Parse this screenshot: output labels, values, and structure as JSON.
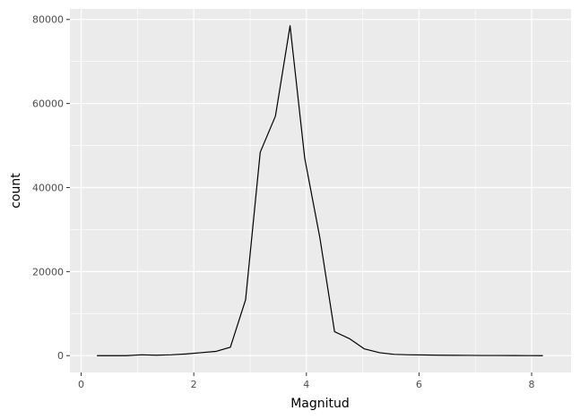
{
  "chart_data": {
    "type": "line",
    "xlabel": "Magnitud",
    "ylabel": "count",
    "xlim": [
      -0.2,
      8.7
    ],
    "ylim": [
      -4000,
      82500
    ],
    "xticks": [
      0,
      2,
      4,
      6,
      8
    ],
    "yticks": [
      0,
      20000,
      40000,
      60000,
      80000
    ],
    "grid": true,
    "series": [
      {
        "x": [
          0.28,
          0.54,
          0.8,
          1.07,
          1.33,
          1.6,
          1.86,
          2.12,
          2.39,
          2.65,
          2.92,
          3.18,
          3.45,
          3.71,
          3.97,
          4.24,
          4.5,
          4.77,
          5.03,
          5.3,
          5.56,
          5.83,
          6.09,
          6.35,
          6.62,
          6.88,
          7.15,
          7.41,
          7.68,
          7.94,
          8.2
        ],
        "y": [
          0,
          0,
          0,
          200,
          100,
          200,
          400,
          700,
          1000,
          2000,
          13300,
          48400,
          57000,
          78500,
          47000,
          28000,
          5700,
          4000,
          1600,
          700,
          300,
          200,
          150,
          100,
          80,
          60,
          40,
          30,
          20,
          10,
          0
        ]
      }
    ]
  },
  "colors": {
    "panel": "#ebebeb",
    "grid_major": "#ffffff",
    "line": "#000000"
  }
}
